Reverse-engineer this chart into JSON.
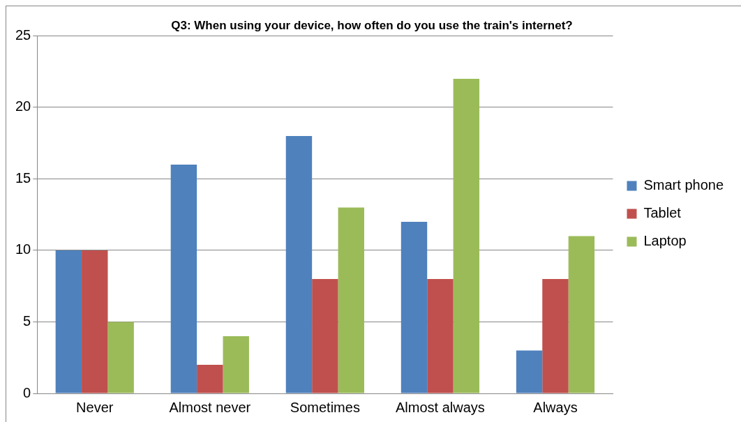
{
  "chart_data": {
    "type": "bar",
    "title": "Q3: When using your device, how often do you use the train's internet?",
    "categories": [
      "Never",
      "Almost never",
      "Sometimes",
      "Almost always",
      "Always"
    ],
    "series": [
      {
        "name": "Smart phone",
        "color": "#4f81bd",
        "values": [
          10,
          16,
          18,
          12,
          3
        ]
      },
      {
        "name": "Tablet",
        "color": "#c0504d",
        "values": [
          10,
          2,
          8,
          8,
          8
        ]
      },
      {
        "name": "Laptop",
        "color": "#9bbb59",
        "values": [
          5,
          4,
          13,
          22,
          11
        ]
      }
    ],
    "ylim": [
      0,
      25
    ],
    "yticks": [
      0,
      5,
      10,
      15,
      20,
      25
    ],
    "grid": "y",
    "legend": "right"
  }
}
